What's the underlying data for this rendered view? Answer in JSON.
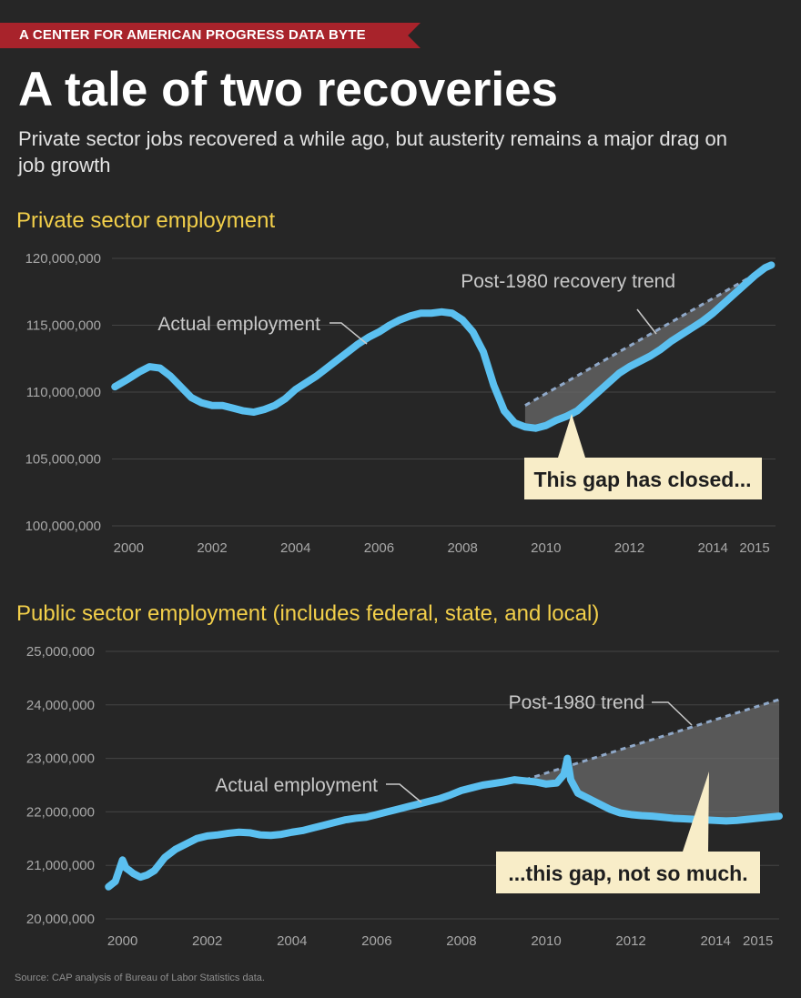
{
  "header": {
    "banner": "A CENTER FOR AMERICAN PROGRESS DATA BYTE",
    "title": "A tale of two recoveries",
    "subtitle": "Private sector jobs recovered a while ago, but austerity remains a major drag on job growth"
  },
  "source": "Source: CAP analysis of Bureau of Labor Statistics data.",
  "colors": {
    "actual_line": "#5bc0f0",
    "trend_line": "#8fa8c8",
    "gap_fill": "#6a6a6a",
    "section_title": "#f2cf4a",
    "callout_bg": "#f8edc8",
    "grid": "#444444",
    "axis_text": "#a8a8a8"
  },
  "chart_data": [
    {
      "type": "line",
      "title": "Private sector employment",
      "xlabel": "",
      "ylabel": "",
      "ylim": [
        100000000,
        120000000
      ],
      "xlim": [
        1999.6,
        2015.5
      ],
      "yticks": [
        100000000,
        105000000,
        110000000,
        115000000,
        120000000
      ],
      "ytick_labels": [
        "100,000,000",
        "105,000,000",
        "110,000,000",
        "115,000,000",
        "120,000,000"
      ],
      "xticks": [
        2000,
        2002,
        2004,
        2006,
        2008,
        2010,
        2012,
        2014,
        2015
      ],
      "xtick_labels": [
        "2000",
        "2002",
        "2004",
        "2006",
        "2008",
        "2010",
        "2012",
        "2014",
        "2015"
      ],
      "grid": true,
      "series": [
        {
          "name": "Actual employment",
          "x": [
            1999.67,
            2000.0,
            2000.25,
            2000.5,
            2000.75,
            2001.0,
            2001.25,
            2001.5,
            2001.75,
            2002.0,
            2002.25,
            2002.5,
            2002.75,
            2003.0,
            2003.25,
            2003.5,
            2003.75,
            2004.0,
            2004.25,
            2004.5,
            2004.75,
            2005.0,
            2005.25,
            2005.5,
            2005.75,
            2006.0,
            2006.25,
            2006.5,
            2006.75,
            2007.0,
            2007.25,
            2007.5,
            2007.75,
            2008.0,
            2008.25,
            2008.5,
            2008.75,
            2009.0,
            2009.25,
            2009.5,
            2009.75,
            2010.0,
            2010.25,
            2010.5,
            2010.75,
            2011.0,
            2011.25,
            2011.5,
            2011.75,
            2012.0,
            2012.25,
            2012.5,
            2012.75,
            2013.0,
            2013.25,
            2013.5,
            2013.75,
            2014.0,
            2014.25,
            2014.5,
            2014.75,
            2015.0,
            2015.25,
            2015.4
          ],
          "y": [
            110400000,
            111000000,
            111500000,
            111900000,
            111800000,
            111200000,
            110400000,
            109600000,
            109200000,
            109000000,
            109000000,
            108800000,
            108600000,
            108500000,
            108700000,
            109000000,
            109500000,
            110200000,
            110700000,
            111200000,
            111800000,
            112400000,
            113000000,
            113600000,
            114100000,
            114500000,
            115000000,
            115400000,
            115700000,
            115900000,
            115900000,
            116000000,
            115900000,
            115400000,
            114500000,
            113000000,
            110500000,
            108600000,
            107700000,
            107400000,
            107300000,
            107500000,
            107900000,
            108200000,
            108600000,
            109300000,
            110000000,
            110700000,
            111400000,
            111900000,
            112300000,
            112700000,
            113200000,
            113800000,
            114300000,
            114800000,
            115300000,
            115900000,
            116600000,
            117300000,
            118000000,
            118700000,
            119300000,
            119500000
          ]
        },
        {
          "name": "Post-1980 recovery trend",
          "x": [
            2009.5,
            2015.4
          ],
          "y": [
            109000000,
            119500000
          ]
        }
      ],
      "annotations": {
        "actual_label": "Actual employment",
        "trend_label": "Post-1980 recovery trend",
        "callout": "This gap has closed..."
      }
    },
    {
      "type": "line",
      "title": "Public sector employment (includes federal, state, and local)",
      "xlabel": "",
      "ylabel": "",
      "ylim": [
        20000000,
        25000000
      ],
      "xlim": [
        1999.6,
        2015.5
      ],
      "yticks": [
        20000000,
        21000000,
        22000000,
        23000000,
        24000000,
        25000000
      ],
      "ytick_labels": [
        "20,000,000",
        "21,000,000",
        "22,000,000",
        "23,000,000",
        "24,000,000",
        "25,000,000"
      ],
      "xticks": [
        2000,
        2002,
        2004,
        2006,
        2008,
        2010,
        2012,
        2014,
        2015
      ],
      "xtick_labels": [
        "2000",
        "2002",
        "2004",
        "2006",
        "2008",
        "2010",
        "2012",
        "2014",
        "2015"
      ],
      "grid": true,
      "series": [
        {
          "name": "Actual employment",
          "x": [
            1999.67,
            1999.83,
            2000.0,
            2000.08,
            2000.17,
            2000.25,
            2000.42,
            2000.58,
            2000.75,
            2001.0,
            2001.25,
            2001.5,
            2001.75,
            2002.0,
            2002.25,
            2002.5,
            2002.75,
            2003.0,
            2003.25,
            2003.5,
            2003.75,
            2004.0,
            2004.25,
            2004.5,
            2004.75,
            2005.0,
            2005.25,
            2005.5,
            2005.75,
            2006.0,
            2006.25,
            2006.5,
            2006.75,
            2007.0,
            2007.25,
            2007.5,
            2007.75,
            2008.0,
            2008.25,
            2008.5,
            2008.75,
            2009.0,
            2009.25,
            2009.5,
            2009.75,
            2010.0,
            2010.25,
            2010.42,
            2010.5,
            2010.58,
            2010.75,
            2011.0,
            2011.25,
            2011.5,
            2011.75,
            2012.0,
            2012.25,
            2012.5,
            2012.75,
            2013.0,
            2013.25,
            2013.5,
            2013.75,
            2014.0,
            2014.25,
            2014.5,
            2014.75,
            2015.0,
            2015.25,
            2015.5
          ],
          "y": [
            20600000,
            20700000,
            21100000,
            20950000,
            20900000,
            20850000,
            20780000,
            20820000,
            20900000,
            21150000,
            21300000,
            21400000,
            21500000,
            21550000,
            21570000,
            21600000,
            21620000,
            21610000,
            21570000,
            21560000,
            21580000,
            21620000,
            21650000,
            21700000,
            21750000,
            21800000,
            21850000,
            21880000,
            21900000,
            21950000,
            22000000,
            22050000,
            22100000,
            22150000,
            22200000,
            22250000,
            22320000,
            22400000,
            22450000,
            22500000,
            22530000,
            22560000,
            22600000,
            22580000,
            22560000,
            22520000,
            22540000,
            22700000,
            23000000,
            22600000,
            22350000,
            22250000,
            22150000,
            22050000,
            21980000,
            21950000,
            21930000,
            21920000,
            21900000,
            21880000,
            21870000,
            21860000,
            21850000,
            21840000,
            21830000,
            21840000,
            21860000,
            21880000,
            21900000,
            21920000
          ]
        },
        {
          "name": "Post-1980 trend",
          "x": [
            2009.5,
            2015.5
          ],
          "y": [
            22600000,
            24100000
          ]
        }
      ],
      "annotations": {
        "actual_label": "Actual employment",
        "trend_label": "Post-1980 trend",
        "callout": "...this gap, not so much."
      }
    }
  ]
}
